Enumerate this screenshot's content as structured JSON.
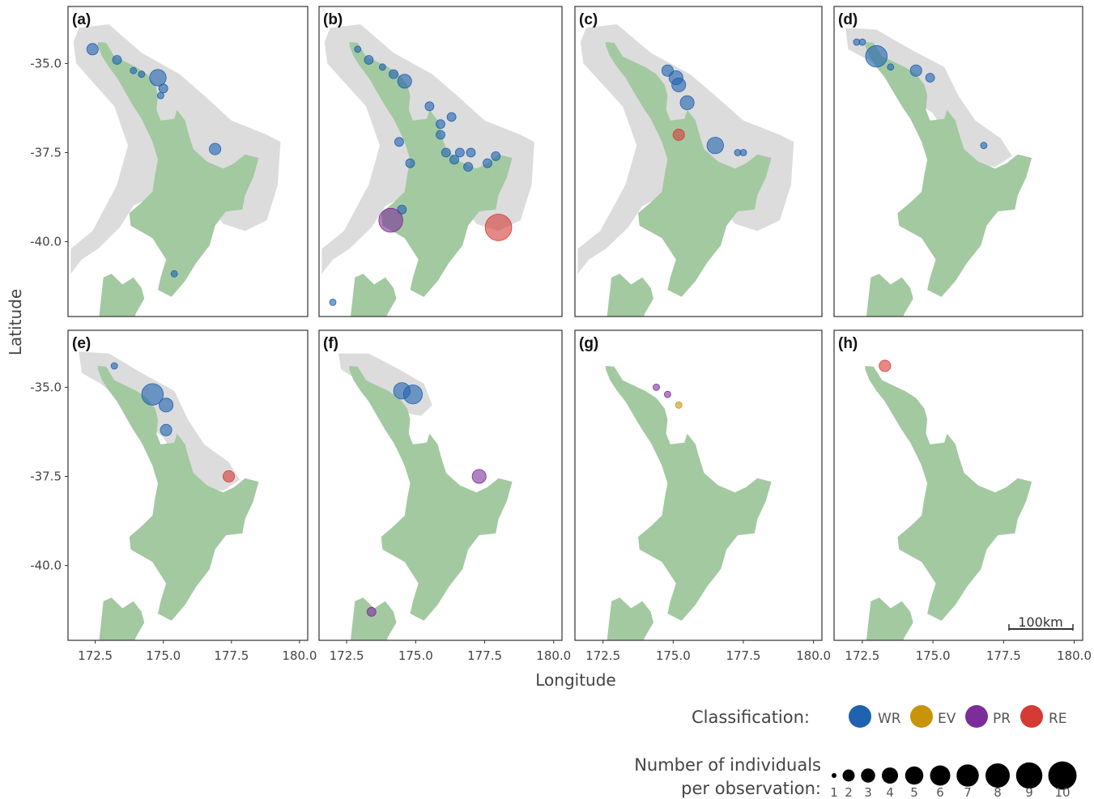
{
  "chart_data": {
    "type": "scatter",
    "figure_type": "faceted map of observation points",
    "xlabel": "Longitude",
    "ylabel": "Latitude",
    "xlim": [
      171.5,
      180.3
    ],
    "ylim": [
      -42.1,
      -33.4
    ],
    "xticks": [
      172.5,
      175.0,
      177.5,
      180.0
    ],
    "xtick_labels": [
      "172.5",
      "175.0",
      "177.5",
      "180.0"
    ],
    "yticks": [
      -35.0,
      -37.5,
      -40.0
    ],
    "ytick_labels": [
      "-35.0",
      "-37.5",
      "-40.0"
    ],
    "classification_colors": {
      "WR": "#1f62b0",
      "EV": "#c9930a",
      "PR": "#7b2e9a",
      "RE": "#d63a35"
    },
    "land_color": "#a3c9a1",
    "range_color": "#dcdcdc",
    "panels": [
      {
        "label": "(a)",
        "range": "wide",
        "points": [
          {
            "lon": 172.4,
            "lat": -34.6,
            "n": 3,
            "cls": "WR"
          },
          {
            "lon": 173.3,
            "lat": -34.9,
            "n": 2,
            "cls": "WR"
          },
          {
            "lon": 173.9,
            "lat": -35.2,
            "n": 1,
            "cls": "WR"
          },
          {
            "lon": 174.2,
            "lat": -35.3,
            "n": 1,
            "cls": "WR"
          },
          {
            "lon": 174.8,
            "lat": -35.4,
            "n": 5,
            "cls": "WR"
          },
          {
            "lon": 175.0,
            "lat": -35.7,
            "n": 2,
            "cls": "WR"
          },
          {
            "lon": 174.9,
            "lat": -35.9,
            "n": 1,
            "cls": "WR"
          },
          {
            "lon": 176.9,
            "lat": -37.4,
            "n": 3,
            "cls": "WR"
          },
          {
            "lon": 175.4,
            "lat": -40.9,
            "n": 1,
            "cls": "WR"
          }
        ]
      },
      {
        "label": "(b)",
        "range": "wide",
        "points": [
          {
            "lon": 172.9,
            "lat": -34.6,
            "n": 1,
            "cls": "WR"
          },
          {
            "lon": 173.3,
            "lat": -34.9,
            "n": 2,
            "cls": "WR"
          },
          {
            "lon": 173.8,
            "lat": -35.1,
            "n": 1,
            "cls": "WR"
          },
          {
            "lon": 174.2,
            "lat": -35.3,
            "n": 2,
            "cls": "WR"
          },
          {
            "lon": 174.6,
            "lat": -35.5,
            "n": 4,
            "cls": "WR"
          },
          {
            "lon": 175.5,
            "lat": -36.2,
            "n": 2,
            "cls": "WR"
          },
          {
            "lon": 176.3,
            "lat": -36.5,
            "n": 2,
            "cls": "WR"
          },
          {
            "lon": 175.9,
            "lat": -36.7,
            "n": 2,
            "cls": "WR"
          },
          {
            "lon": 175.9,
            "lat": -37.0,
            "n": 2,
            "cls": "WR"
          },
          {
            "lon": 174.4,
            "lat": -37.2,
            "n": 2,
            "cls": "WR"
          },
          {
            "lon": 176.1,
            "lat": -37.5,
            "n": 2,
            "cls": "WR"
          },
          {
            "lon": 176.6,
            "lat": -37.5,
            "n": 2,
            "cls": "WR"
          },
          {
            "lon": 177.0,
            "lat": -37.5,
            "n": 2,
            "cls": "WR"
          },
          {
            "lon": 176.4,
            "lat": -37.7,
            "n": 2,
            "cls": "WR"
          },
          {
            "lon": 174.8,
            "lat": -37.8,
            "n": 2,
            "cls": "WR"
          },
          {
            "lon": 176.9,
            "lat": -37.9,
            "n": 2,
            "cls": "WR"
          },
          {
            "lon": 177.6,
            "lat": -37.8,
            "n": 2,
            "cls": "WR"
          },
          {
            "lon": 177.9,
            "lat": -37.6,
            "n": 2,
            "cls": "WR"
          },
          {
            "lon": 174.5,
            "lat": -39.1,
            "n": 2,
            "cls": "WR"
          },
          {
            "lon": 174.1,
            "lat": -39.4,
            "n": 8,
            "cls": "PR"
          },
          {
            "lon": 178.0,
            "lat": -39.6,
            "n": 9,
            "cls": "RE"
          },
          {
            "lon": 172.0,
            "lat": -41.7,
            "n": 1,
            "cls": "WR"
          }
        ]
      },
      {
        "label": "(c)",
        "range": "wide",
        "points": [
          {
            "lon": 174.8,
            "lat": -35.2,
            "n": 3,
            "cls": "WR"
          },
          {
            "lon": 175.1,
            "lat": -35.4,
            "n": 4,
            "cls": "WR"
          },
          {
            "lon": 175.2,
            "lat": -35.6,
            "n": 4,
            "cls": "WR"
          },
          {
            "lon": 175.5,
            "lat": -36.1,
            "n": 4,
            "cls": "WR"
          },
          {
            "lon": 175.2,
            "lat": -37.0,
            "n": 3,
            "cls": "RE"
          },
          {
            "lon": 176.5,
            "lat": -37.3,
            "n": 5,
            "cls": "WR"
          },
          {
            "lon": 177.3,
            "lat": -37.5,
            "n": 1,
            "cls": "WR"
          },
          {
            "lon": 177.5,
            "lat": -37.5,
            "n": 1,
            "cls": "WR"
          }
        ]
      },
      {
        "label": "(d)",
        "range": "narrow",
        "points": [
          {
            "lon": 172.3,
            "lat": -34.4,
            "n": 1,
            "cls": "WR"
          },
          {
            "lon": 172.5,
            "lat": -34.4,
            "n": 1,
            "cls": "WR"
          },
          {
            "lon": 173.0,
            "lat": -34.8,
            "n": 7,
            "cls": "WR"
          },
          {
            "lon": 173.5,
            "lat": -35.1,
            "n": 1,
            "cls": "WR"
          },
          {
            "lon": 174.4,
            "lat": -35.2,
            "n": 3,
            "cls": "WR"
          },
          {
            "lon": 174.9,
            "lat": -35.4,
            "n": 2,
            "cls": "WR"
          },
          {
            "lon": 176.8,
            "lat": -37.3,
            "n": 1,
            "cls": "WR"
          }
        ]
      },
      {
        "label": "(e)",
        "range": "narrow",
        "points": [
          {
            "lon": 173.2,
            "lat": -34.4,
            "n": 1,
            "cls": "WR"
          },
          {
            "lon": 174.6,
            "lat": -35.2,
            "n": 7,
            "cls": "WR"
          },
          {
            "lon": 175.1,
            "lat": -35.5,
            "n": 4,
            "cls": "WR"
          },
          {
            "lon": 175.1,
            "lat": -36.2,
            "n": 3,
            "cls": "WR"
          },
          {
            "lon": 177.4,
            "lat": -37.5,
            "n": 3,
            "cls": "RE"
          }
        ]
      },
      {
        "label": "(f)",
        "range": "north",
        "points": [
          {
            "lon": 174.5,
            "lat": -35.1,
            "n": 5,
            "cls": "WR"
          },
          {
            "lon": 174.9,
            "lat": -35.2,
            "n": 6,
            "cls": "WR"
          },
          {
            "lon": 177.3,
            "lat": -37.5,
            "n": 4,
            "cls": "PR"
          },
          {
            "lon": 173.4,
            "lat": -41.3,
            "n": 2,
            "cls": "PR"
          }
        ]
      },
      {
        "label": "(g)",
        "range": "none",
        "points": [
          {
            "lon": 174.4,
            "lat": -35.0,
            "n": 1,
            "cls": "PR"
          },
          {
            "lon": 174.8,
            "lat": -35.2,
            "n": 1,
            "cls": "PR"
          },
          {
            "lon": 175.2,
            "lat": -35.5,
            "n": 1,
            "cls": "EV"
          }
        ]
      },
      {
        "label": "(h)",
        "range": "none",
        "points": [
          {
            "lon": 173.3,
            "lat": -34.4,
            "n": 3,
            "cls": "RE"
          }
        ]
      }
    ]
  },
  "axes": {
    "x_title": "Longitude",
    "y_title": "Latitude"
  },
  "scale_bar": {
    "label": "100km"
  },
  "legend": {
    "classification_title": "Classification:",
    "classes": [
      {
        "code": "WR",
        "color": "#1f62b0"
      },
      {
        "code": "EV",
        "color": "#c9930a"
      },
      {
        "code": "PR",
        "color": "#7b2e9a"
      },
      {
        "code": "RE",
        "color": "#d63a35"
      }
    ],
    "size_title_line1": "Number of individuals",
    "size_title_line2": "per observation:",
    "sizes": [
      "1",
      "2",
      "3",
      "4",
      "5",
      "6",
      "7",
      "8",
      "9",
      "10"
    ]
  }
}
